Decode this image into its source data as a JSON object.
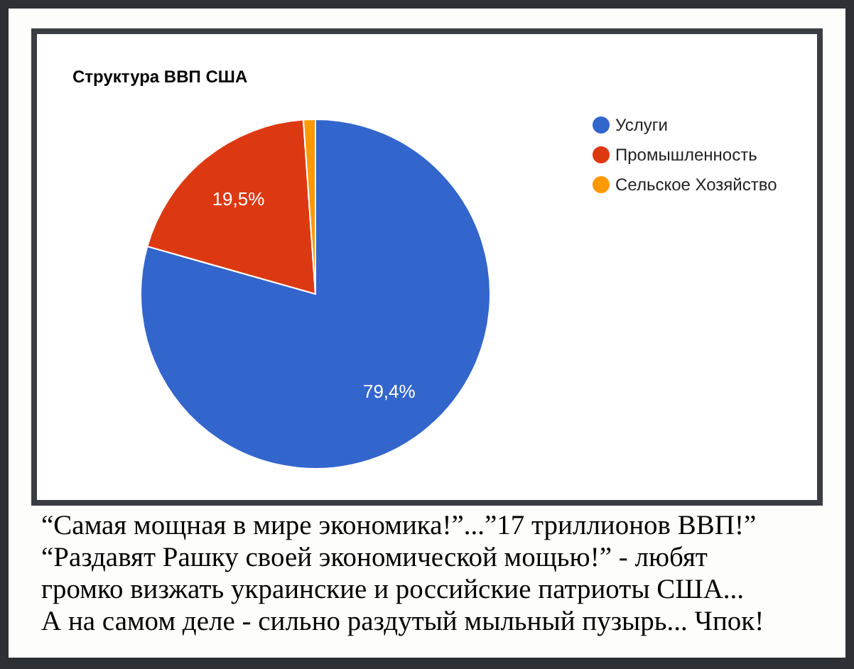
{
  "chart_data": {
    "type": "pie",
    "title": "Структура ВВП США",
    "categories": [
      "Услуги",
      "Промышленность",
      "Сельское Хозяйство"
    ],
    "values": [
      79.4,
      19.5,
      1.1
    ],
    "colors": [
      "#3366cc",
      "#dc3912",
      "#ff9900"
    ],
    "value_labels": [
      "79,4%",
      "19,5%",
      null
    ],
    "legend": "top right",
    "annotations": [
      "“Самая мощная в мире экономика!”...”17 триллионов ВВП!”",
      "“Раздавят Рашку своей экономической мощью!” - любят",
      "громко визжать украинские и российские патриоты США...",
      "А на самом деле - сильно раздутый мыльный пузырь... Чпок!"
    ]
  }
}
